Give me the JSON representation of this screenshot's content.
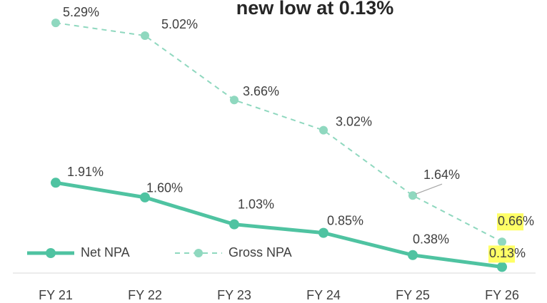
{
  "chart_data": {
    "type": "line",
    "title": "new low at 0.13%",
    "categories": [
      "FY 21",
      "FY 22",
      "FY 23",
      "FY 24",
      "FY 25",
      "FY 26"
    ],
    "series": [
      {
        "name": "Net NPA",
        "color": "#4fc3a1",
        "dashed": false,
        "values": [
          1.91,
          1.6,
          1.03,
          0.85,
          0.38,
          0.13
        ],
        "value_labels": [
          "1.91%",
          "1.60%",
          "1.03%",
          "0.85%",
          "0.38%",
          "0.13%"
        ]
      },
      {
        "name": "Gross NPA",
        "color": "#8fd8bf",
        "dashed": true,
        "values": [
          5.29,
          5.02,
          3.66,
          3.02,
          1.64,
          0.66
        ],
        "value_labels": [
          "5.29%",
          "5.02%",
          "3.66%",
          "3.02%",
          "1.64%",
          "0.66%"
        ]
      }
    ],
    "ylim": [
      0,
      6
    ],
    "legend": "lower left"
  }
}
